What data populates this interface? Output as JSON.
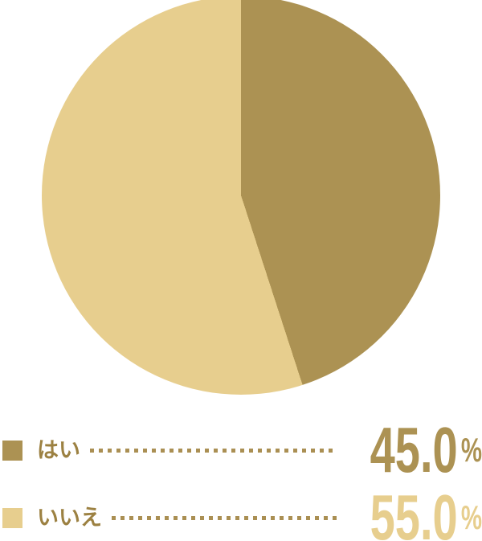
{
  "chart_data": {
    "type": "pie",
    "categories": [
      "はい",
      "いいえ"
    ],
    "values": [
      45.0,
      55.0
    ],
    "display_values": [
      "45.0",
      "55.0"
    ],
    "unit": "%",
    "colors": [
      "#AC9253",
      "#E7CE8E"
    ],
    "start_angle_deg": 0,
    "direction": "clockwise",
    "legend_position": "bottom"
  },
  "legend": {
    "label_color": "#9C8142",
    "leader_dot_color": "#AA8F53",
    "items": [
      {
        "label": "はい",
        "value": "45.0",
        "unit": "%"
      },
      {
        "label": "いいえ",
        "value": "55.0",
        "unit": "%"
      }
    ]
  }
}
